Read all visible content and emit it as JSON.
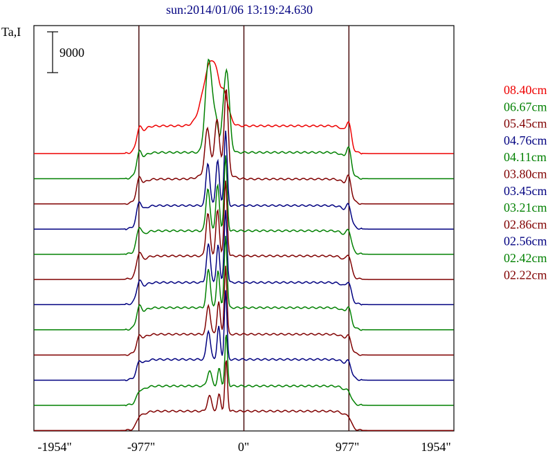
{
  "chart_data": {
    "type": "line",
    "title": "sun:2014/01/06 13:19:24.630",
    "ylabel": "Ta,I",
    "scale_bar_label": "9000",
    "x_ticks": [
      -1954,
      -977,
      0,
      977,
      1954
    ],
    "x_tick_labels": [
      "-1954\"",
      "-977\"",
      "0\"",
      "977\"",
      "1954\""
    ],
    "xlim": [
      -1954,
      1954
    ],
    "vertical_lines": [
      -977,
      0,
      977
    ],
    "grid": false,
    "legend_position": "right",
    "colors": {
      "red": "#ee0000",
      "green": "#008000",
      "darkred": "#800000",
      "blue": "#000080",
      "axis": "#000000",
      "title": "#000080"
    },
    "series": [
      {
        "name": "08.40cm",
        "color": "#ee0000",
        "baseline": 0,
        "profile": "s1"
      },
      {
        "name": "06.67cm",
        "color": "#008000",
        "baseline": 1,
        "profile": "s2"
      },
      {
        "name": "05.45cm",
        "color": "#800000",
        "baseline": 2,
        "profile": "s3"
      },
      {
        "name": "04.76cm",
        "color": "#000080",
        "baseline": 3,
        "profile": "s4"
      },
      {
        "name": "04.11cm",
        "color": "#008000",
        "baseline": 4,
        "profile": "s4"
      },
      {
        "name": "03.80cm",
        "color": "#800000",
        "baseline": 5,
        "profile": "s4"
      },
      {
        "name": "03.45cm",
        "color": "#000080",
        "baseline": 6,
        "profile": "s5"
      },
      {
        "name": "03.21cm",
        "color": "#008000",
        "baseline": 7,
        "profile": "s5"
      },
      {
        "name": "02.86cm",
        "color": "#800000",
        "baseline": 8,
        "profile": "s6"
      },
      {
        "name": "02.56cm",
        "color": "#000080",
        "baseline": 9,
        "profile": "s6"
      },
      {
        "name": "02.42cm",
        "color": "#008000",
        "baseline": 10,
        "profile": "s7"
      },
      {
        "name": "02.22cm",
        "color": "#800000",
        "baseline": 11,
        "profile": "s7"
      }
    ]
  }
}
